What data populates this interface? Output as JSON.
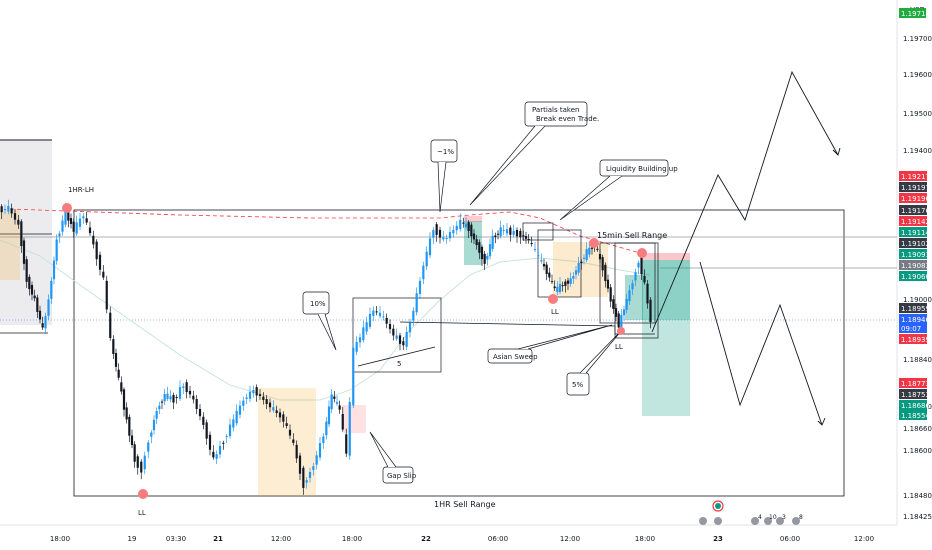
{
  "chart_data": {
    "type": "candlestick",
    "currency": "USD",
    "x_ticks": [
      "18:00",
      "19",
      "03:30",
      "21",
      "12:00",
      "18:00",
      "22",
      "06:00",
      "12:00",
      "18:00",
      "23",
      "06:00",
      "12:00"
    ],
    "y_ticks": [
      "1.19700",
      "1.19600",
      "1.19500",
      "1.19400",
      "1.19000",
      "1.18840",
      "1.18720",
      "1.18660",
      "1.18600",
      "1.18480",
      "1.18425"
    ],
    "ylim": [
      1.1838,
      1.1978
    ],
    "price_tags": [
      {
        "label": "1.19217",
        "value": 1.19217,
        "color": "#f23645"
      },
      {
        "label": "1.19197",
        "value": 1.19197,
        "color": "#363a45"
      },
      {
        "label": "1.19196",
        "value": 1.19196,
        "color": "#f23645"
      },
      {
        "label": "1.19176",
        "value": 1.19176,
        "color": "#363a45"
      },
      {
        "label": "1.19142",
        "value": 1.19142,
        "color": "#f23645"
      },
      {
        "label": "1.19114",
        "value": 1.19114,
        "color": "#089981"
      },
      {
        "label": "1.19102",
        "value": 1.19102,
        "color": "#363a45"
      },
      {
        "label": "1.19091",
        "value": 1.19091,
        "color": "#089981"
      },
      {
        "label": "1.19083",
        "value": 1.19083,
        "color": "#787b86"
      },
      {
        "label": "1.19060",
        "value": 1.1906,
        "color": "#089981"
      },
      {
        "label": "1.18959",
        "value": 1.18959,
        "color": "#363a45"
      },
      {
        "label": "1.18946",
        "value": 1.18946,
        "color": "#2962ff"
      },
      {
        "label": "09:07",
        "value": 1.18922,
        "color": "#2962ff"
      },
      {
        "label": "1.18939",
        "value": 1.18896,
        "color": "#f23645"
      },
      {
        "label": "1.18773",
        "value": 1.18773,
        "color": "#f23645"
      },
      {
        "label": "1.18753",
        "value": 1.18753,
        "color": "#363a45"
      },
      {
        "label": "1.18686",
        "value": 1.18686,
        "color": "#089981"
      },
      {
        "label": "1.18554",
        "value": 1.18554,
        "color": "#089981"
      }
    ],
    "top_tag": "1.19711",
    "annotations": {
      "lh": "1HR-LH",
      "ll_left": "LL",
      "ll_mid": "LL",
      "ll_right": "LL",
      "sell_15m": "15min Sell Range",
      "sell_1h": "1HR Sell Range",
      "partials_1": "Partials taken",
      "partials_2": "Break even Trade.",
      "liquidity": "Liquidity Building up",
      "asian": "Asian Sweep",
      "gap": "Gap Slip",
      "pct_neg1": "~1%",
      "pct_10": "10%",
      "pct_5": "5%",
      "five": "5"
    },
    "event_counts": [
      "4",
      "10",
      "3",
      "8"
    ]
  }
}
